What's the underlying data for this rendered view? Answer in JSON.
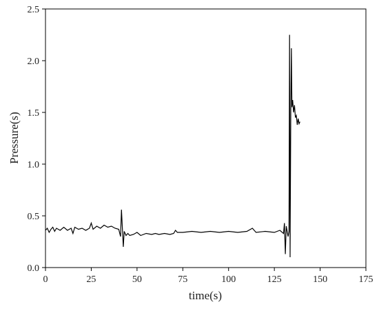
{
  "chart_data": {
    "type": "line",
    "x_label": "time(s)",
    "y_label": "Pressure(s)",
    "xlim": [
      0,
      175
    ],
    "ylim": [
      0,
      2.5
    ],
    "xticks": [
      0,
      25,
      50,
      75,
      100,
      125,
      150,
      175
    ],
    "yticks": [
      {
        "value": 0,
        "label": "0.0"
      },
      {
        "value": 0.5,
        "label": "0.5"
      },
      {
        "value": 1,
        "label": "1.0"
      },
      {
        "value": 1.5,
        "label": "1.5"
      },
      {
        "value": 2,
        "label": "2.0"
      },
      {
        "value": 2.5,
        "label": "2.5"
      }
    ],
    "grid": false,
    "series": [
      {
        "color": "#000000",
        "x": [
          0,
          1,
          2,
          3,
          4,
          5,
          6,
          8,
          10,
          12,
          14,
          15,
          16,
          18,
          20,
          22,
          24,
          25,
          26,
          28,
          30,
          32,
          34,
          36,
          38,
          40,
          41,
          41.5,
          42,
          42.5,
          43,
          44,
          45,
          46,
          48,
          50,
          52,
          55,
          58,
          60,
          62,
          65,
          68,
          70,
          71,
          72,
          75,
          80,
          85,
          90,
          95,
          100,
          105,
          110,
          113,
          115,
          120,
          125,
          128,
          130,
          130.5,
          131,
          131.5,
          132,
          132.5,
          133,
          133.3,
          133.6,
          134,
          134.3,
          134.6,
          135,
          135.5,
          136,
          136.5,
          137,
          137.5,
          138,
          138.5,
          139
        ],
        "values": [
          0.36,
          0.38,
          0.34,
          0.37,
          0.39,
          0.35,
          0.38,
          0.36,
          0.39,
          0.36,
          0.38,
          0.33,
          0.39,
          0.37,
          0.38,
          0.36,
          0.38,
          0.43,
          0.37,
          0.4,
          0.38,
          0.41,
          0.39,
          0.4,
          0.38,
          0.37,
          0.3,
          0.56,
          0.38,
          0.2,
          0.35,
          0.31,
          0.33,
          0.31,
          0.32,
          0.34,
          0.31,
          0.33,
          0.32,
          0.33,
          0.32,
          0.33,
          0.32,
          0.33,
          0.36,
          0.34,
          0.34,
          0.35,
          0.34,
          0.35,
          0.34,
          0.35,
          0.34,
          0.35,
          0.38,
          0.34,
          0.35,
          0.34,
          0.36,
          0.33,
          0.43,
          0.13,
          0.4,
          0.35,
          0.3,
          0.35,
          2.25,
          0.1,
          1.6,
          2.12,
          1.55,
          1.62,
          1.5,
          1.57,
          1.45,
          1.47,
          1.38,
          1.44,
          1.39,
          1.41
        ]
      }
    ]
  }
}
